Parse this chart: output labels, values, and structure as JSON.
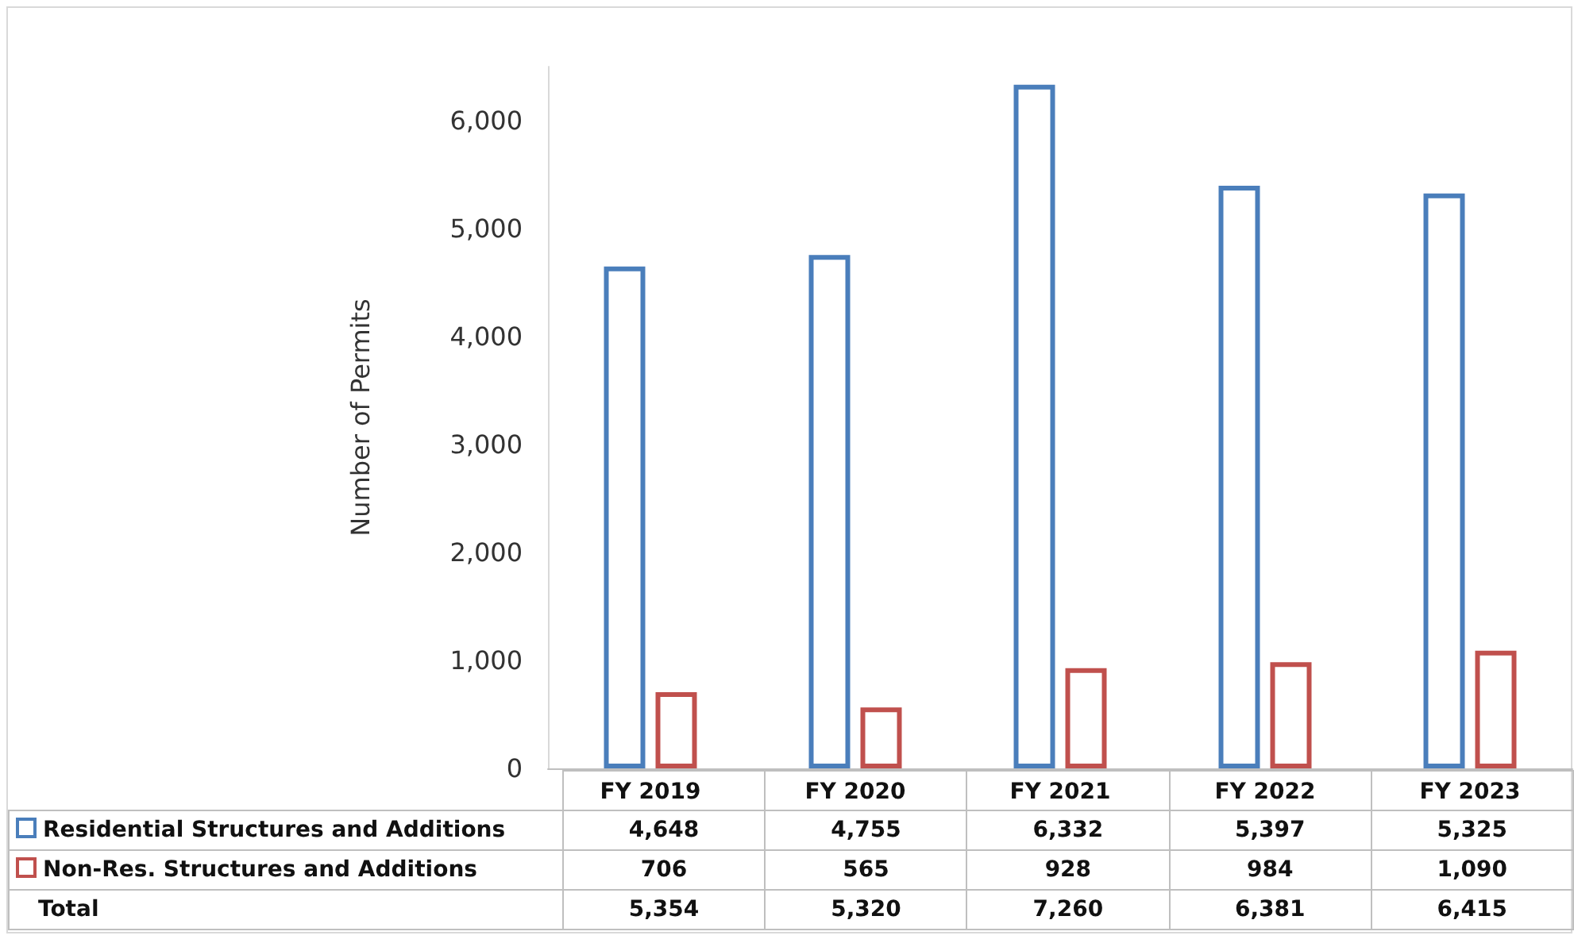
{
  "chart_data": {
    "type": "bar",
    "ylabel": "Number of Permits",
    "categories": [
      "FY 2019",
      "FY 2020",
      "FY 2021",
      "FY 2022",
      "FY 2023"
    ],
    "series": [
      {
        "name": "Residential Structures and Additions",
        "color": "#4a7ebb",
        "values": [
          4648,
          4755,
          6332,
          5397,
          5325
        ],
        "value_labels": [
          "4,648",
          "4,755",
          "6,332",
          "5,397",
          "5,325"
        ]
      },
      {
        "name": "Non-Res. Structures and Additions",
        "color": "#c0504d",
        "values": [
          706,
          565,
          928,
          984,
          1090
        ],
        "value_labels": [
          "706",
          "565",
          "928",
          "984",
          "1,090"
        ]
      }
    ],
    "ylim": [
      0,
      6500
    ],
    "yticks": [
      0,
      {
        "value": 1000,
        "label": "1,000"
      },
      {
        "value": 2000,
        "label": "2,000"
      },
      {
        "value": 3000,
        "label": "3,000"
      },
      {
        "value": 4000,
        "label": "4,000"
      },
      {
        "value": 5000,
        "label": "5,000"
      },
      {
        "value": 6000,
        "label": "6,000"
      }
    ],
    "grid": false,
    "legend": "bottom left",
    "annotations": [
      "Total",
      "5,354",
      "5,320",
      "7,260",
      "6,381",
      "6,415"
    ]
  }
}
